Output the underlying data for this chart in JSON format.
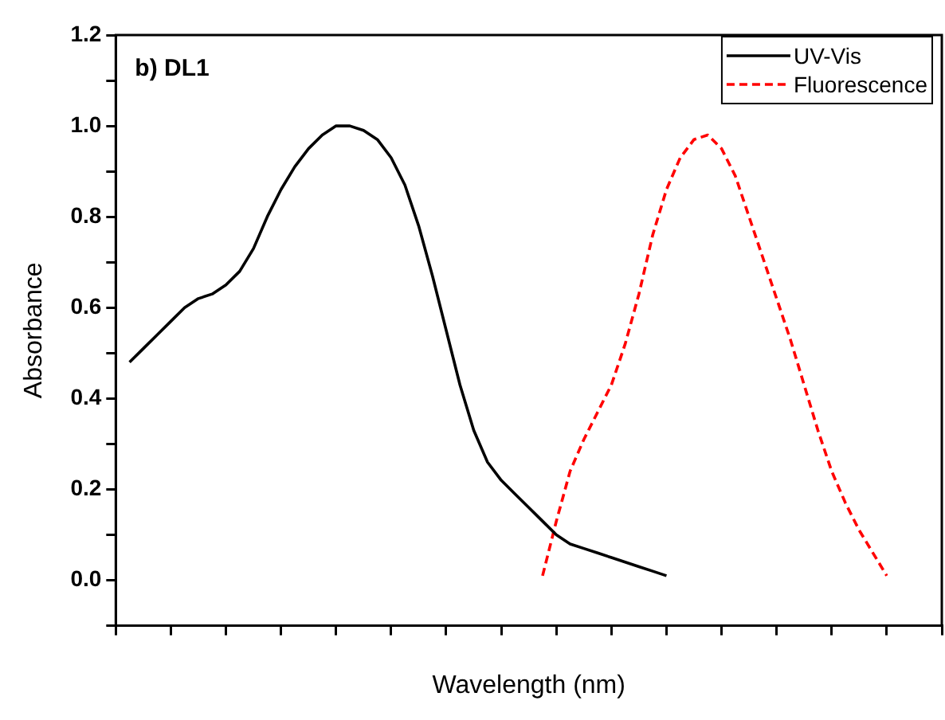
{
  "chart_data": {
    "type": "line",
    "xlabel": "Wavelength (nm)",
    "ylabel": "Absorbance",
    "annotations": [
      "b) DL1"
    ],
    "categories": [
      null,
      null,
      null,
      null,
      null,
      null,
      null,
      null,
      null,
      null,
      null,
      null,
      null,
      null,
      null,
      null,
      null,
      null,
      null,
      null,
      null,
      null,
      null,
      null,
      null,
      null,
      null,
      null,
      null,
      null,
      null,
      null,
      null,
      null,
      null,
      null,
      null,
      null,
      null,
      null,
      null,
      null,
      null,
      null,
      null,
      null,
      null,
      null,
      null,
      null,
      null,
      null,
      null,
      null,
      null,
      null,
      null,
      null,
      null,
      null,
      null
    ],
    "ylim": [
      -0.1,
      1.2
    ],
    "yticks": [
      {
        "value": -0.1,
        "label": null
      },
      "0.0",
      {
        "value": 0.1,
        "label": null
      },
      {
        "value": 0.2,
        "label": "0.2"
      },
      {
        "value": 0.3,
        "label": null
      },
      {
        "value": 0.4,
        "label": "0.4"
      },
      {
        "value": 0.5,
        "label": null
      },
      {
        "value": 0.6,
        "label": "0.6"
      },
      {
        "value": 0.7,
        "label": null
      },
      {
        "value": 0.8,
        "label": "0.8"
      },
      {
        "value": 0.9,
        "label": null
      },
      {
        "value": 1.0,
        "label": "1.0"
      },
      {
        "value": 1.1,
        "label": null
      },
      {
        "value": 1.2,
        "label": "1.2"
      }
    ],
    "tick_labels": "y",
    "legend": "top right",
    "marker": "none",
    "grid": false,
    "series": [
      {
        "name": "UV-Vis",
        "color": "#000000",
        "line_style": "solid",
        "values": [
          null,
          0.48,
          0.51,
          0.54,
          0.57,
          0.6,
          0.62,
          0.63,
          0.65,
          0.68,
          0.73,
          0.8,
          0.86,
          0.91,
          0.95,
          0.98,
          1.0,
          1.0,
          0.99,
          0.97,
          0.93,
          0.87,
          0.78,
          0.67,
          0.55,
          0.43,
          0.33,
          0.26,
          0.22,
          0.19,
          0.16,
          0.13,
          0.1,
          0.08,
          0.07,
          0.06,
          0.05,
          0.04,
          0.03,
          0.02,
          0.01,
          null,
          null,
          null,
          null,
          null,
          null,
          null,
          null,
          null,
          null,
          null,
          null,
          null,
          null,
          null,
          null,
          null,
          null,
          null,
          null
        ]
      },
      {
        "name": "Fluorescence",
        "color": "#ff0000",
        "line_style": "dashed",
        "values": [
          null,
          null,
          null,
          null,
          null,
          null,
          null,
          null,
          null,
          null,
          null,
          null,
          null,
          null,
          null,
          null,
          null,
          null,
          null,
          null,
          null,
          null,
          null,
          null,
          null,
          null,
          null,
          null,
          null,
          null,
          null,
          0.01,
          0.13,
          0.24,
          0.31,
          0.37,
          0.43,
          0.52,
          0.63,
          0.76,
          0.86,
          0.93,
          0.97,
          0.98,
          0.95,
          0.89,
          0.8,
          0.71,
          0.62,
          0.53,
          0.43,
          0.33,
          0.24,
          0.17,
          0.11,
          0.06,
          0.01,
          null,
          null,
          null,
          null
        ]
      }
    ]
  }
}
